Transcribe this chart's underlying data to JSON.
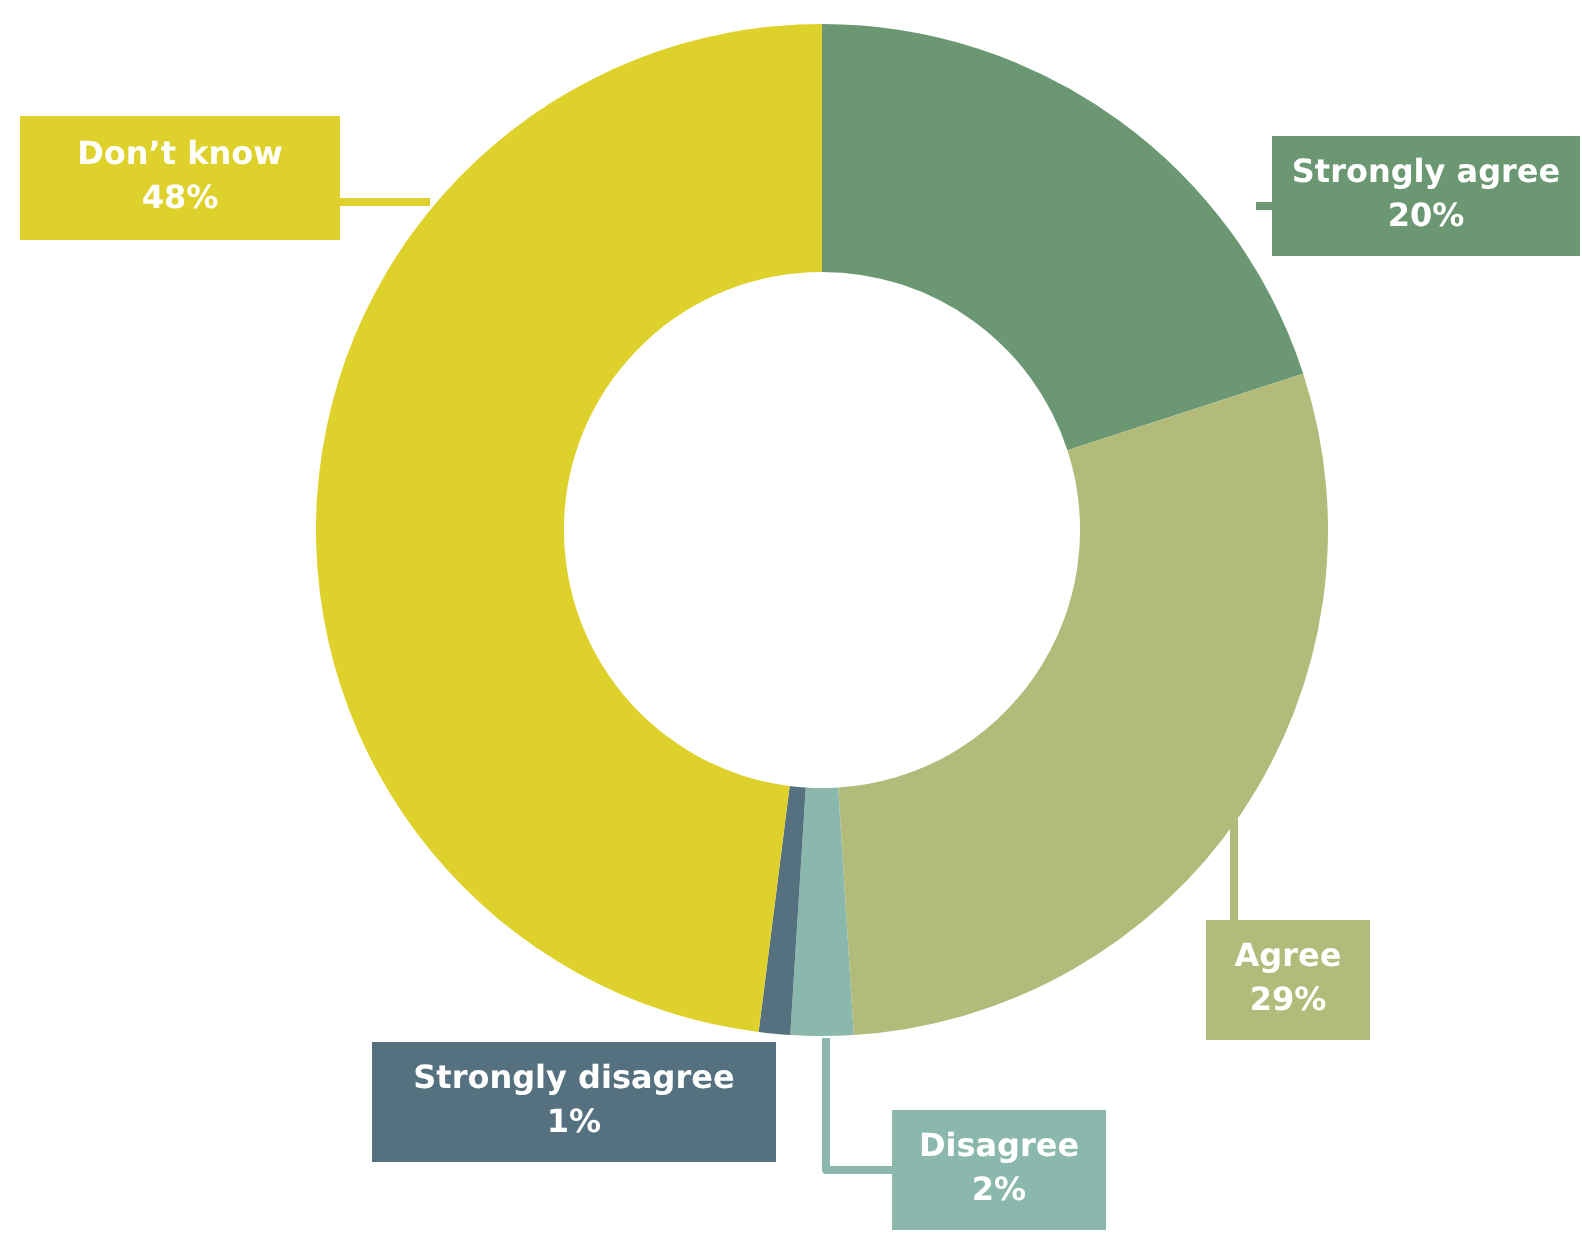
{
  "chart_data": {
    "type": "donut",
    "categories": [
      "Strongly agree",
      "Agree",
      "Disagree",
      "Strongly disagree",
      "Don’t know"
    ],
    "values": [
      20,
      29,
      2,
      1,
      48
    ],
    "colors": [
      "#6b9872",
      "#b3bb7a",
      "#8ab8ad",
      "#55717f",
      "#dfd12b"
    ],
    "value_labels": [
      "20%",
      "29%",
      "2%",
      "1%",
      "48%"
    ],
    "legend": false
  }
}
